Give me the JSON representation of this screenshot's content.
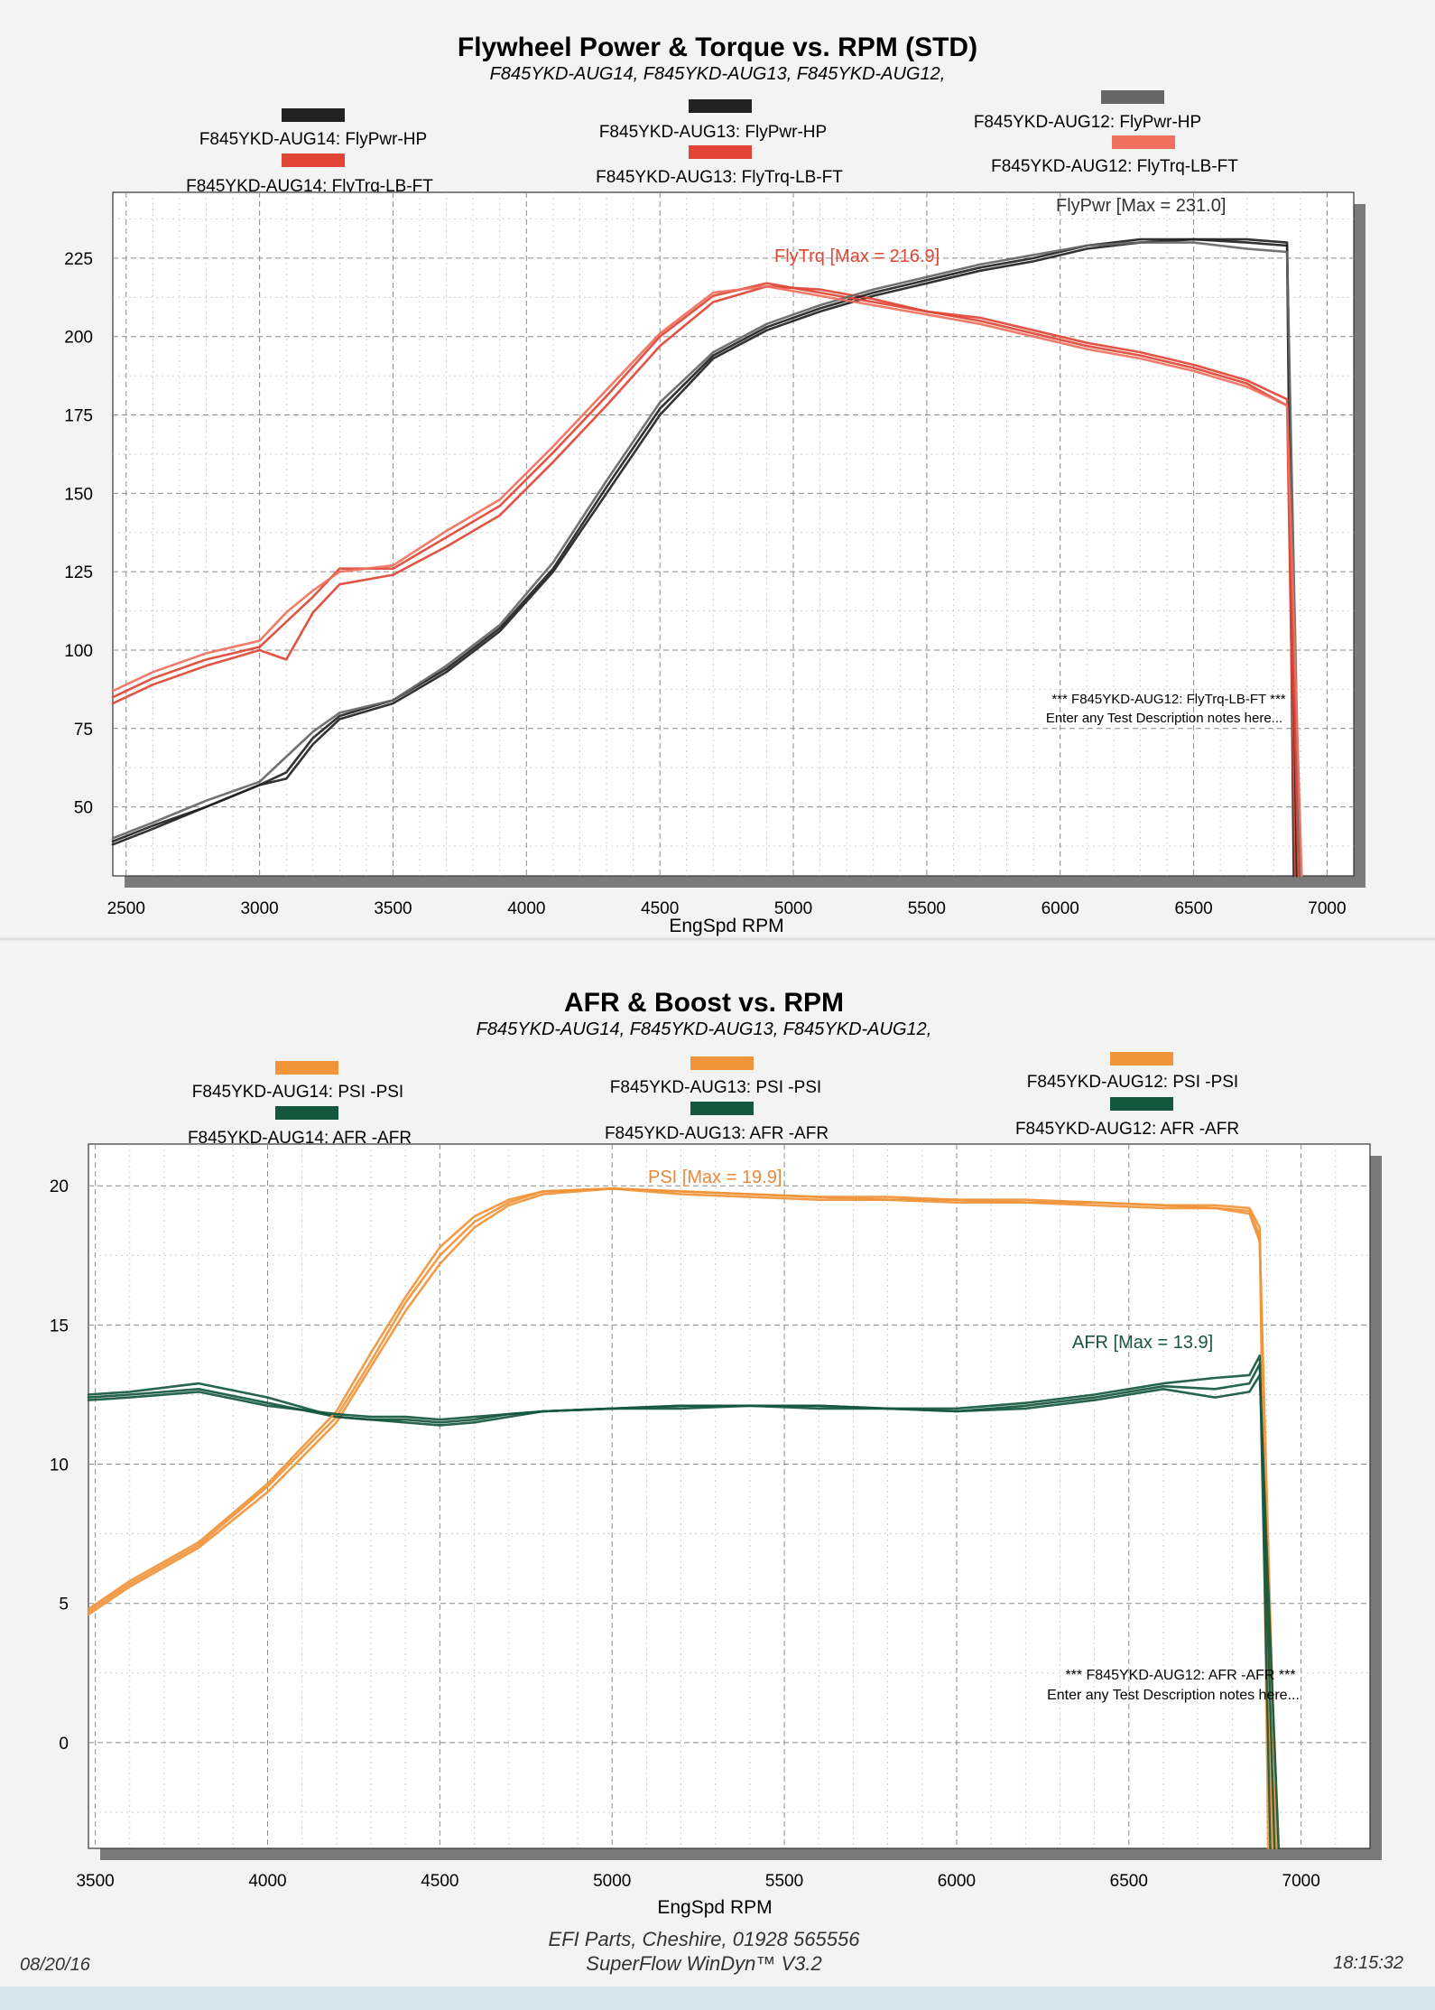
{
  "footer": {
    "date": "08/20/16",
    "time": "18:15:32",
    "shop": "EFI Parts, Cheshire, 01928 565556",
    "software": "SuperFlow WinDyn™ V3.2"
  },
  "chart_data": [
    {
      "type": "line",
      "title": "Flywheel Power & Torque vs. RPM (STD)",
      "subtitle": "F845YKD-AUG14, F845YKD-AUG13, F845YKD-AUG12,",
      "xlabel": "EngSpd RPM",
      "ylabel": "",
      "xlim": [
        2450,
        7100
      ],
      "ylim": [
        28,
        246
      ],
      "x_ticks": [
        2500,
        3000,
        3500,
        4000,
        4500,
        5000,
        5500,
        6000,
        6500,
        7000
      ],
      "y_ticks": [
        50,
        75,
        100,
        125,
        150,
        175,
        200,
        225
      ],
      "grid": true,
      "legend_position": "top",
      "legend": [
        {
          "label": "F845YKD-AUG14: FlyPwr-HP",
          "color": "#222222"
        },
        {
          "label": "F845YKD-AUG14: FlyTrq-LB-FT",
          "color": "#e04535"
        },
        {
          "label": "F845YKD-AUG13: FlyPwr-HP",
          "color": "#222222"
        },
        {
          "label": "F845YKD-AUG13: FlyTrq-LB-FT",
          "color": "#e04535"
        },
        {
          "label": "F845YKD-AUG12: FlyPwr-HP",
          "color": "#666666"
        },
        {
          "label": "F845YKD-AUG12: FlyTrq-LB-FT",
          "color": "#f0705e"
        }
      ],
      "annotations": [
        {
          "text": "FlyPwr [Max = 231.0]",
          "color": "#333333"
        },
        {
          "text": "FlyTrq [Max = 216.9]",
          "color": "#e04535"
        }
      ],
      "notes": [
        "*** F845YKD-AUG12: FlyTrq-LB-FT ***",
        "Enter any Test Description notes here..."
      ],
      "x": [
        2450,
        2600,
        2800,
        3000,
        3100,
        3200,
        3300,
        3500,
        3700,
        3900,
        4100,
        4300,
        4500,
        4700,
        4900,
        5100,
        5300,
        5500,
        5700,
        5900,
        6100,
        6300,
        6500,
        6700,
        6850
      ],
      "series": [
        {
          "name": "F845YKD-AUG14: FlyPwr-HP",
          "color": "#222222",
          "values": [
            39,
            44,
            50,
            57,
            59,
            70,
            78,
            83,
            93,
            106,
            125,
            150,
            175,
            193,
            202,
            208,
            213,
            217,
            221,
            224,
            228,
            230,
            231,
            230,
            229
          ]
        },
        {
          "name": "F845YKD-AUG14: FlyTrq-LB-FT",
          "color": "#e04535",
          "values": [
            83,
            89,
            95,
            100,
            97,
            112,
            121,
            124,
            133,
            143,
            160,
            178,
            197,
            211,
            216,
            215,
            212,
            208,
            205,
            201,
            197,
            194,
            190,
            185,
            178
          ]
        },
        {
          "name": "F845YKD-AUG13: FlyPwr-HP",
          "color": "#222222",
          "values": [
            38,
            43,
            50,
            57,
            61,
            72,
            79,
            84,
            94,
            107,
            126,
            152,
            177,
            194,
            203,
            209,
            214,
            218,
            222,
            225,
            229,
            231,
            231,
            231,
            230
          ]
        },
        {
          "name": "F845YKD-AUG13: FlyTrq-LB-FT",
          "color": "#e04535",
          "values": [
            85,
            91,
            97,
            101,
            109,
            117,
            126,
            126,
            136,
            146,
            163,
            181,
            200,
            213,
            217,
            214,
            211,
            208,
            206,
            202,
            198,
            195,
            191,
            186,
            180
          ]
        },
        {
          "name": "F845YKD-AUG12: FlyPwr-HP",
          "color": "#666666",
          "values": [
            40,
            45,
            52,
            58,
            66,
            74,
            80,
            84,
            95,
            108,
            128,
            154,
            179,
            195,
            204,
            210,
            215,
            219,
            223,
            226,
            229,
            230,
            230,
            228,
            227
          ]
        },
        {
          "name": "F845YKD-AUG12: FlyTrq-LB-FT",
          "color": "#f0705e",
          "values": [
            87,
            93,
            99,
            103,
            112,
            119,
            125,
            127,
            138,
            148,
            165,
            183,
            201,
            214,
            216,
            213,
            210,
            207,
            204,
            200,
            196,
            193,
            189,
            184,
            178
          ]
        }
      ]
    },
    {
      "type": "line",
      "title": "AFR & Boost vs. RPM",
      "subtitle": "F845YKD-AUG14, F845YKD-AUG13, F845YKD-AUG12,",
      "xlabel": "EngSpd RPM",
      "ylabel": "",
      "xlim": [
        3480,
        7200
      ],
      "ylim": [
        -3.8,
        21.5
      ],
      "x_ticks": [
        3500,
        4000,
        4500,
        5000,
        5500,
        6000,
        6500,
        7000
      ],
      "y_ticks": [
        0,
        5,
        10,
        15,
        20
      ],
      "grid": true,
      "legend_position": "top",
      "legend": [
        {
          "label": "F845YKD-AUG14: PSI   -PSI",
          "color": "#f0943a"
        },
        {
          "label": "F845YKD-AUG14: AFR   -AFR",
          "color": "#15573e"
        },
        {
          "label": "F845YKD-AUG13: PSI   -PSI",
          "color": "#f0943a"
        },
        {
          "label": "F845YKD-AUG13: AFR   -AFR",
          "color": "#15573e"
        },
        {
          "label": "F845YKD-AUG12: PSI   -PSI",
          "color": "#f0943a"
        },
        {
          "label": "F845YKD-AUG12: AFR   -AFR",
          "color": "#15573e"
        }
      ],
      "annotations": [
        {
          "text": "PSI    [Max = 19.9]",
          "color": "#e8883a"
        },
        {
          "text": "AFR    [Max = 13.9]",
          "color": "#1a5540"
        }
      ],
      "notes": [
        "*** F845YKD-AUG12: AFR   -AFR    ***",
        "Enter any Test Description notes here..."
      ],
      "x": [
        3480,
        3600,
        3800,
        4000,
        4200,
        4300,
        4400,
        4500,
        4600,
        4700,
        4800,
        5000,
        5200,
        5400,
        5600,
        5800,
        6000,
        6200,
        6400,
        6600,
        6750,
        6850,
        6880
      ],
      "series": [
        {
          "name": "F845YKD-AUG14: PSI   -PSI",
          "color": "#f0943a",
          "values": [
            4.6,
            5.6,
            7.0,
            9.0,
            11.5,
            13.5,
            15.5,
            17.2,
            18.5,
            19.3,
            19.7,
            19.9,
            19.8,
            19.7,
            19.6,
            19.6,
            19.5,
            19.5,
            19.4,
            19.3,
            19.3,
            19.2,
            18.5
          ]
        },
        {
          "name": "F845YKD-AUG14: AFR   -AFR",
          "color": "#15573e",
          "values": [
            12.5,
            12.6,
            12.9,
            12.4,
            11.7,
            11.6,
            11.5,
            11.4,
            11.5,
            11.7,
            11.9,
            12.0,
            12.1,
            12.1,
            12.0,
            12.0,
            12.0,
            12.2,
            12.5,
            12.9,
            13.1,
            13.2,
            13.9
          ]
        },
        {
          "name": "F845YKD-AUG13: PSI   -PSI",
          "color": "#f0943a",
          "values": [
            4.7,
            5.7,
            7.1,
            9.2,
            11.7,
            13.7,
            15.8,
            17.5,
            18.7,
            19.4,
            19.8,
            19.9,
            19.8,
            19.7,
            19.6,
            19.5,
            19.5,
            19.4,
            19.4,
            19.3,
            19.2,
            19.1,
            18.2
          ]
        },
        {
          "name": "F845YKD-AUG13: AFR   -AFR",
          "color": "#15573e",
          "values": [
            12.4,
            12.5,
            12.7,
            12.2,
            11.7,
            11.6,
            11.6,
            11.5,
            11.6,
            11.8,
            11.9,
            12.0,
            12.1,
            12.1,
            12.1,
            12.0,
            11.9,
            12.1,
            12.4,
            12.8,
            12.7,
            12.9,
            13.6
          ]
        },
        {
          "name": "F845YKD-AUG12: PSI   -PSI",
          "color": "#f0943a",
          "values": [
            4.8,
            5.8,
            7.2,
            9.3,
            11.9,
            14.0,
            16.0,
            17.8,
            18.9,
            19.5,
            19.8,
            19.9,
            19.7,
            19.6,
            19.5,
            19.5,
            19.4,
            19.4,
            19.3,
            19.2,
            19.2,
            19.0,
            18.0
          ]
        },
        {
          "name": "F845YKD-AUG12: AFR   -AFR",
          "color": "#15573e",
          "values": [
            12.3,
            12.4,
            12.6,
            12.1,
            11.8,
            11.7,
            11.7,
            11.6,
            11.7,
            11.8,
            11.9,
            12.0,
            12.0,
            12.1,
            12.1,
            12.0,
            11.9,
            12.0,
            12.3,
            12.7,
            12.4,
            12.6,
            13.2
          ]
        }
      ]
    }
  ]
}
